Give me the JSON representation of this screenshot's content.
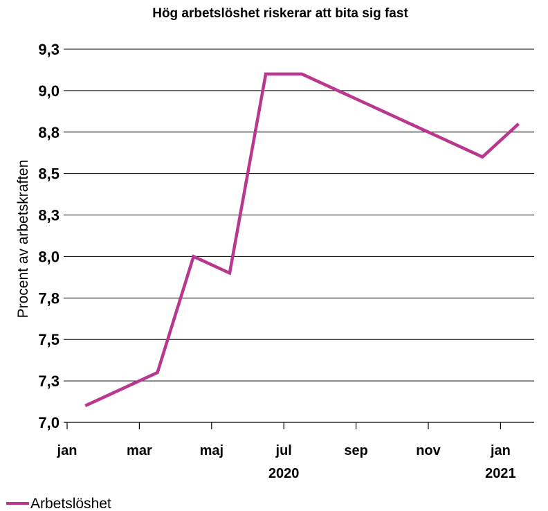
{
  "chart_data": {
    "type": "line",
    "title": "Hög arbetslöshet riskerar att bita sig fast",
    "xlabel": "",
    "ylabel": "Procent av arbetskraften",
    "ylim": [
      7.0,
      9.3
    ],
    "yticks": [
      {
        "value": 7.0,
        "label": "7,0"
      },
      {
        "value": 7.25,
        "label": "7,3"
      },
      {
        "value": 7.5,
        "label": "7,5"
      },
      {
        "value": 7.75,
        "label": "7,8"
      },
      {
        "value": 8.0,
        "label": "8,0"
      },
      {
        "value": 8.25,
        "label": "8,3"
      },
      {
        "value": 8.5,
        "label": "8,5"
      },
      {
        "value": 8.75,
        "label": "8,8"
      },
      {
        "value": 9.0,
        "label": "9,0"
      },
      {
        "value": 9.25,
        "label": "9,3"
      }
    ],
    "xticks": [
      {
        "pos": 0,
        "label": "jan",
        "sublabel": ""
      },
      {
        "pos": 2,
        "label": "mar",
        "sublabel": ""
      },
      {
        "pos": 4,
        "label": "maj",
        "sublabel": ""
      },
      {
        "pos": 6,
        "label": "jul",
        "sublabel": "2020"
      },
      {
        "pos": 8,
        "label": "sep",
        "sublabel": ""
      },
      {
        "pos": 10,
        "label": "nov",
        "sublabel": ""
      },
      {
        "pos": 12,
        "label": "jan",
        "sublabel": "2021"
      }
    ],
    "x": [
      "2020-01",
      "2020-02",
      "2020-03",
      "2020-04",
      "2020-05",
      "2020-06",
      "2020-07",
      "2020-08",
      "2020-09",
      "2020-10",
      "2020-11",
      "2020-12",
      "2021-01"
    ],
    "series": [
      {
        "name": "Arbetslöshet",
        "color": "#b9378f",
        "values": [
          7.1,
          7.2,
          7.3,
          8.0,
          7.9,
          9.1,
          9.1,
          9.0,
          8.9,
          8.8,
          8.7,
          8.6,
          8.8
        ]
      }
    ],
    "grid": true,
    "legend": "bottom-left"
  }
}
